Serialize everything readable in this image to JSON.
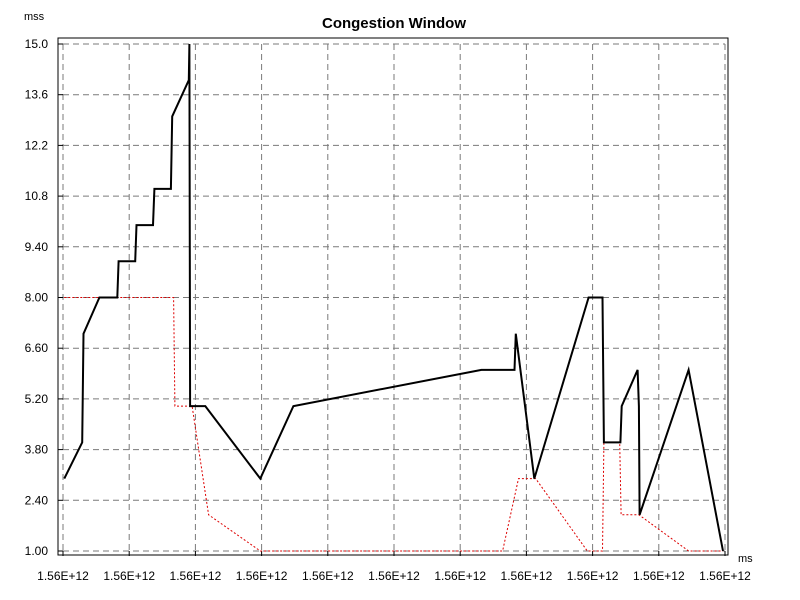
{
  "chart_data": {
    "type": "line",
    "title": "Congestion Window",
    "ylabel": "mss",
    "xlabel": "ms",
    "ylim": [
      1.0,
      15.0
    ],
    "y_ticks": [
      "1.00",
      "2.40",
      "3.80",
      "5.20",
      "6.60",
      "8.00",
      "9.40",
      "10.8",
      "12.2",
      "13.6",
      "15.0"
    ],
    "x_index_range": [
      0,
      10
    ],
    "x_ticks": [
      "1.56E+12",
      "1.56E+12",
      "1.56E+12",
      "1.56E+12",
      "1.56E+12",
      "1.56E+12",
      "1.56E+12",
      "1.56E+12",
      "1.56E+12",
      "1.56E+12",
      "1.56E+12"
    ],
    "grid": true,
    "series": [
      {
        "color": "#000000",
        "style": "solid",
        "points": [
          [
            0.02,
            3.0
          ],
          [
            0.29,
            4.0
          ],
          [
            0.31,
            7.0
          ],
          [
            0.55,
            8.0
          ],
          [
            0.82,
            8.0
          ],
          [
            0.84,
            9.0
          ],
          [
            1.09,
            9.0
          ],
          [
            1.11,
            10.0
          ],
          [
            1.36,
            10.0
          ],
          [
            1.38,
            11.0
          ],
          [
            1.63,
            11.0
          ],
          [
            1.65,
            13.0
          ],
          [
            1.9,
            14.0
          ],
          [
            1.91,
            15.0
          ],
          [
            1.92,
            5.0
          ],
          [
            2.15,
            5.0
          ],
          [
            2.98,
            3.0
          ],
          [
            3.48,
            5.0
          ],
          [
            6.32,
            6.0
          ],
          [
            6.82,
            6.0
          ],
          [
            6.84,
            7.0
          ],
          [
            7.12,
            3.0
          ],
          [
            7.94,
            8.0
          ],
          [
            8.15,
            8.0
          ],
          [
            8.17,
            4.0
          ],
          [
            8.42,
            4.0
          ],
          [
            8.44,
            5.0
          ],
          [
            8.68,
            6.0
          ],
          [
            8.7,
            5.0
          ],
          [
            8.71,
            2.0
          ],
          [
            9.45,
            6.0
          ],
          [
            9.97,
            1.0
          ]
        ]
      },
      {
        "color": "#dd0000",
        "style": "dotted",
        "points": [
          [
            0.02,
            8.0
          ],
          [
            1.67,
            8.0
          ],
          [
            1.69,
            5.0
          ],
          [
            1.95,
            5.0
          ],
          [
            2.2,
            2.0
          ],
          [
            2.98,
            1.0
          ],
          [
            6.64,
            1.0
          ],
          [
            6.88,
            3.0
          ],
          [
            7.14,
            3.0
          ],
          [
            7.92,
            1.0
          ],
          [
            8.15,
            1.0
          ],
          [
            8.17,
            4.0
          ],
          [
            8.41,
            4.0
          ],
          [
            8.43,
            2.0
          ],
          [
            8.7,
            2.0
          ],
          [
            9.45,
            1.0
          ],
          [
            9.97,
            1.0
          ]
        ]
      }
    ]
  }
}
